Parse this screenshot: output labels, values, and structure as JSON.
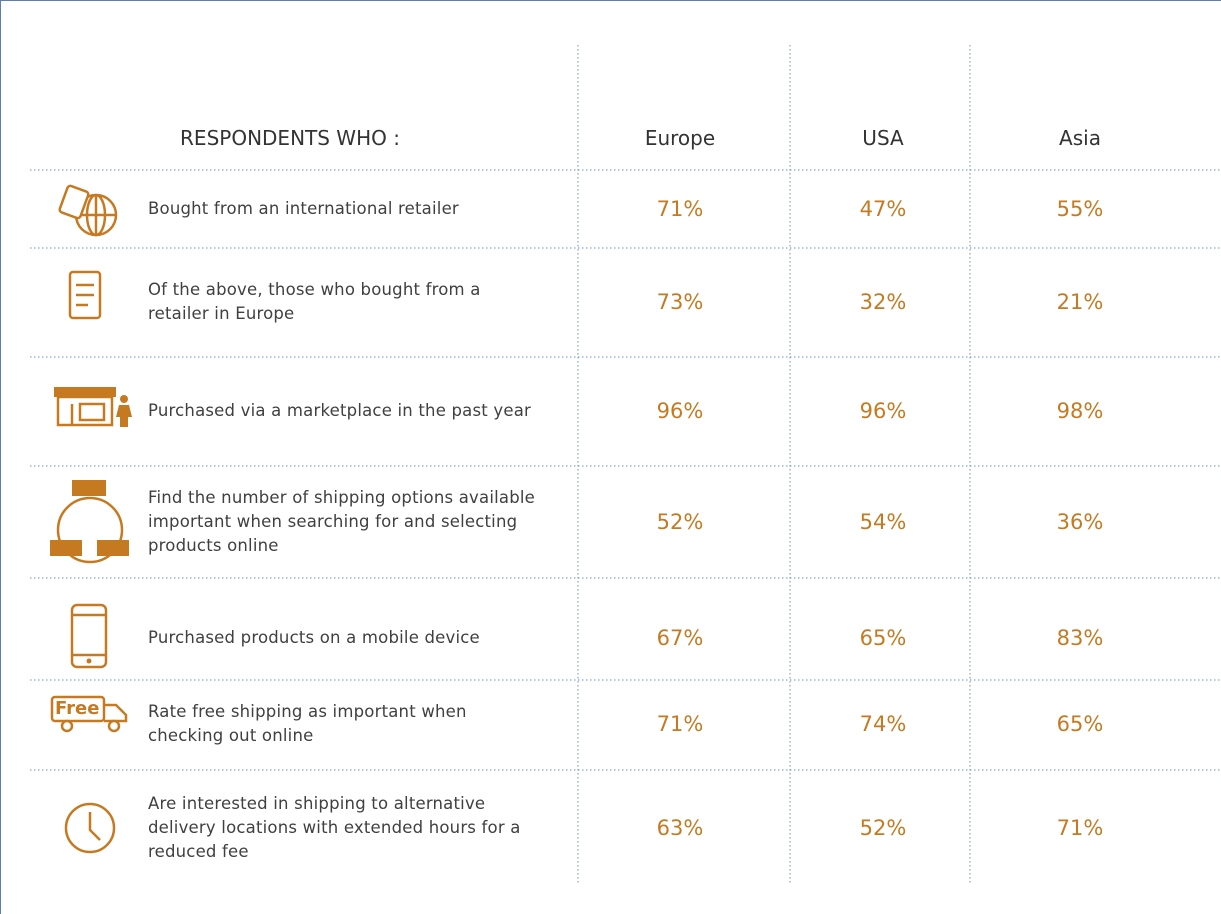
{
  "header": {
    "label": "RESPONDENTS WHO :",
    "columns": [
      "Europe",
      "USA",
      "Asia"
    ]
  },
  "rows": [
    {
      "label": "Bought from an international retailer",
      "values": [
        "71%",
        "47%",
        "55%"
      ]
    },
    {
      "label": "Of the above, those who bought from a retailer in Europe",
      "values": [
        "73%",
        "32%",
        "21%"
      ]
    },
    {
      "label": "Purchased via a marketplace in the past year",
      "values": [
        "96%",
        "96%",
        "98%"
      ]
    },
    {
      "label": "Find the number of shipping options available important when searching for and selecting products online",
      "values": [
        "52%",
        "54%",
        "36%"
      ]
    },
    {
      "label": "Purchased products on a mobile device",
      "values": [
        "67%",
        "65%",
        "83%"
      ]
    },
    {
      "label": "Rate free shipping as important when checking out online",
      "values": [
        "71%",
        "74%",
        "65%"
      ]
    },
    {
      "label": "Are interested in shipping to alternative delivery locations with extended hours for a reduced fee",
      "values": [
        "63%",
        "52%",
        "71%"
      ]
    }
  ]
}
